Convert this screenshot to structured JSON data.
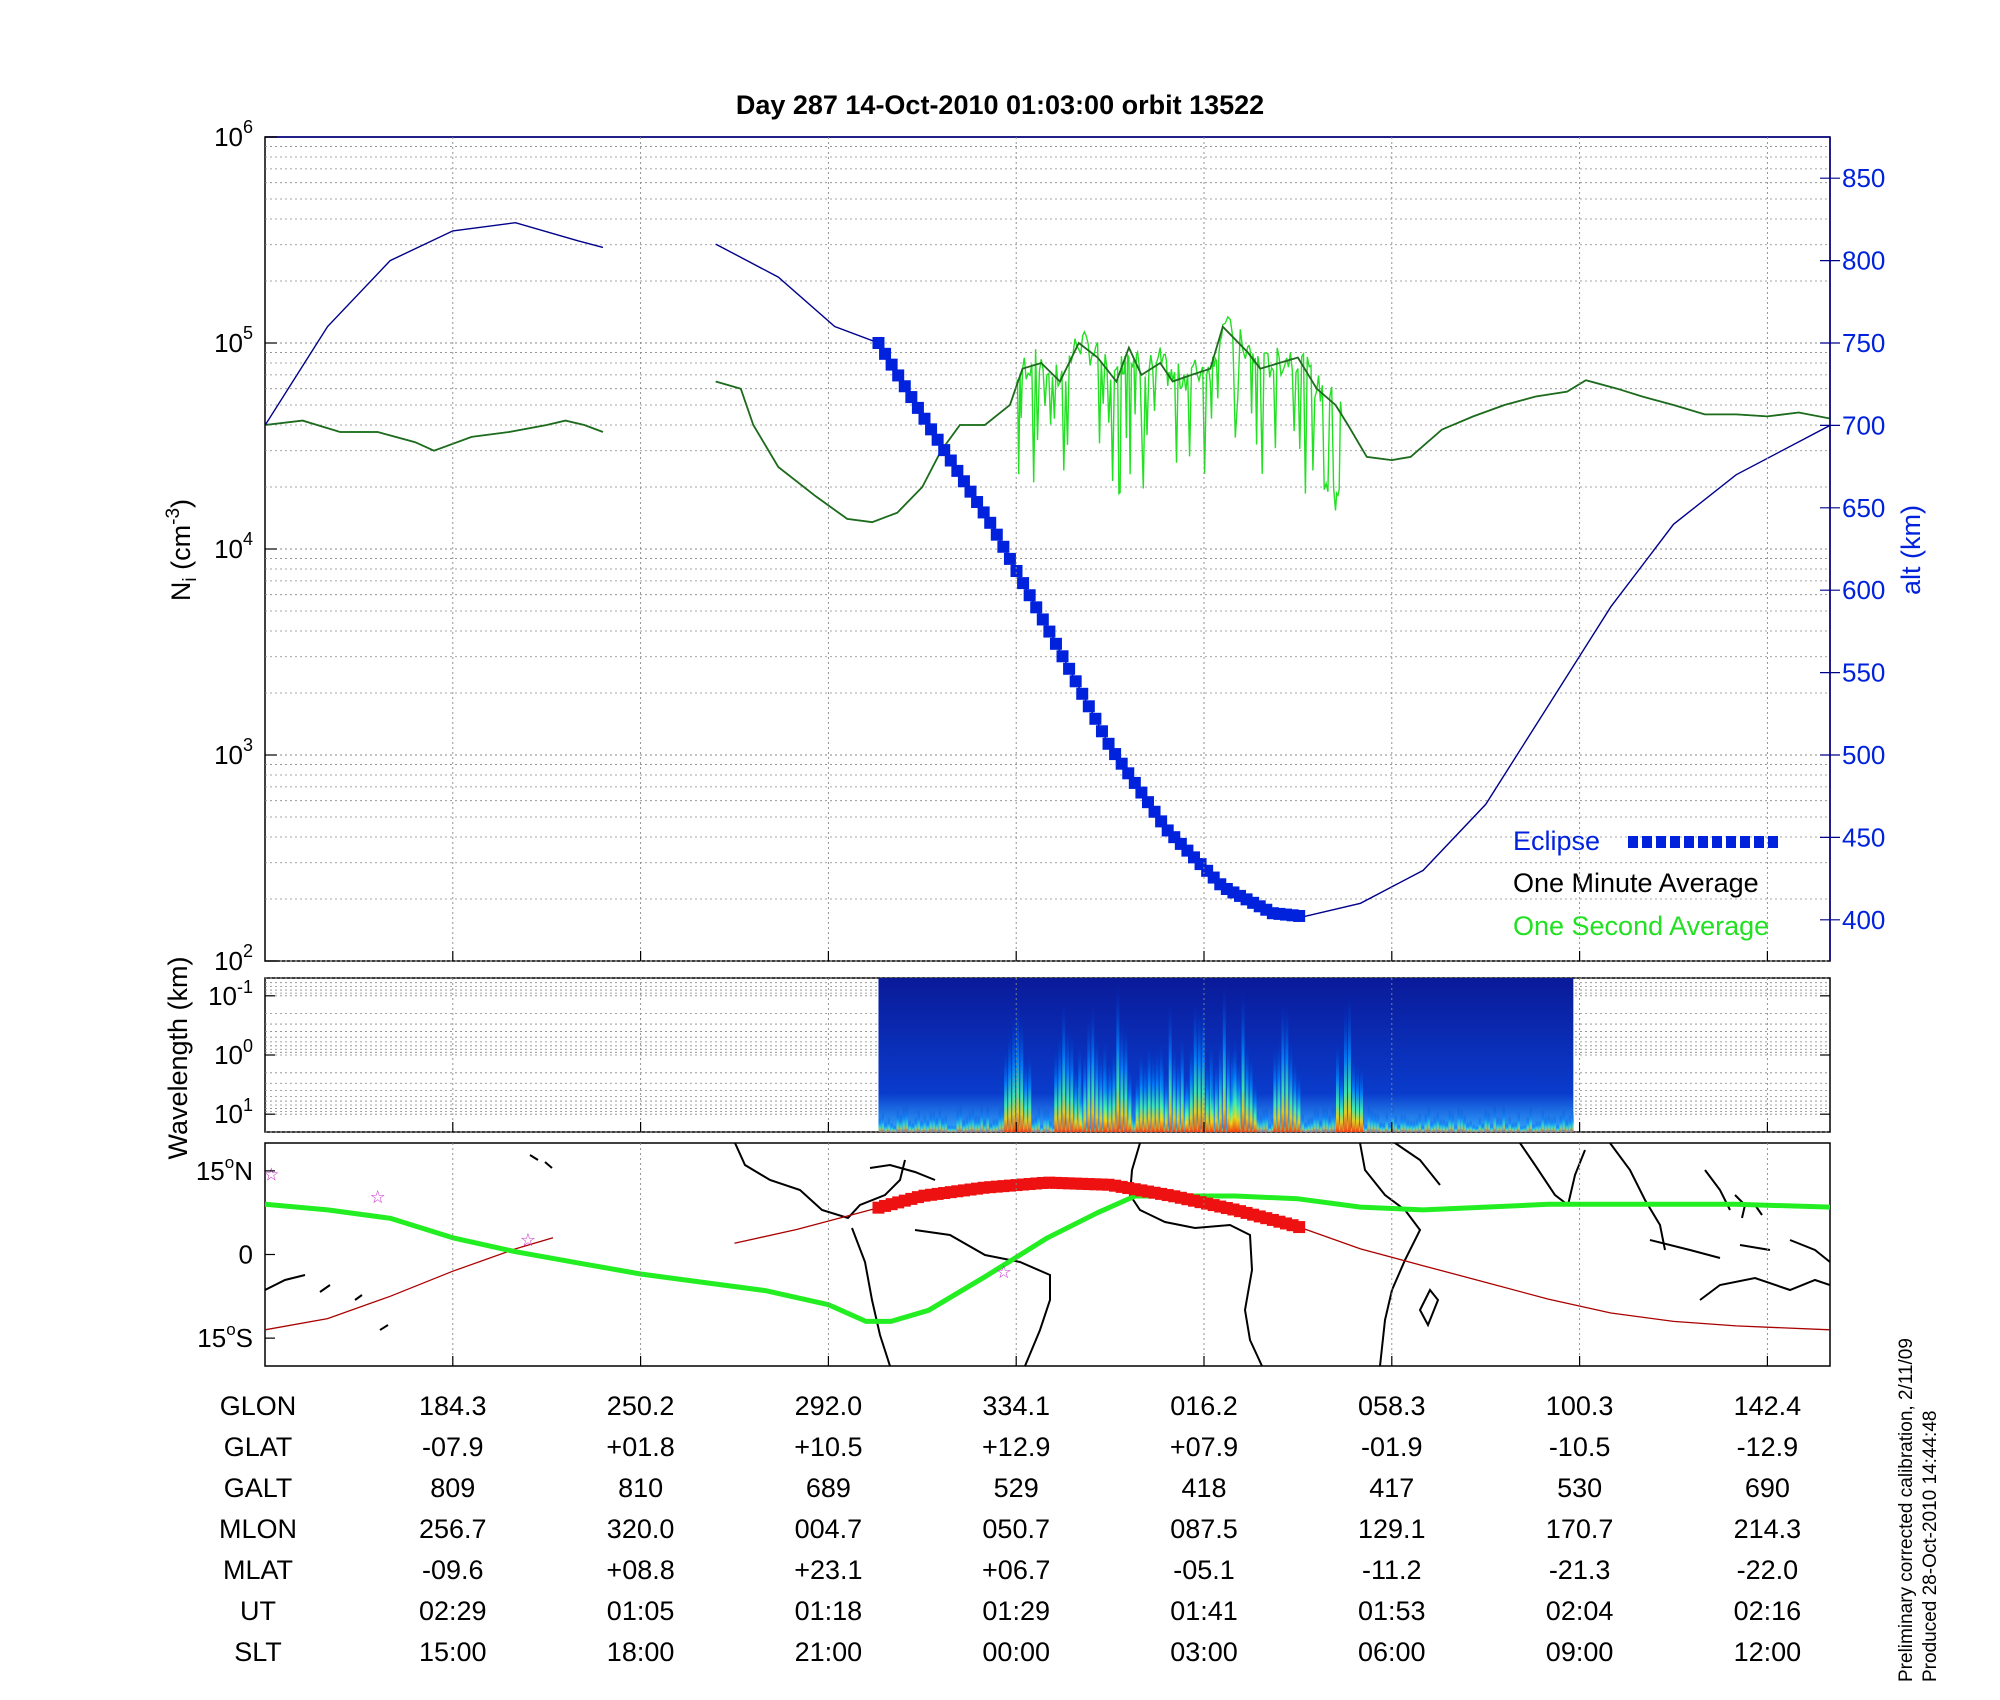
{
  "title": "Day 287  14-Oct-2010 01:03:00   orbit 13522",
  "colors": {
    "altitude": "#00008b",
    "one_minute": "#1e6a1e",
    "one_second": "#22e022",
    "eclipse": "#0022dd",
    "track_eclipse": "#ee1111",
    "track_orbit": "#aa0000",
    "mag_equator": "#22ee22",
    "stars": "#cc33cc"
  },
  "top_panel": {
    "ylabel_base": "N",
    "ylabel_sub": "i",
    "ylabel_unit": " (cm",
    "ylabel_sup": "-3",
    "ylabel_close": ")",
    "y_tick_base": "10",
    "y_tick_exps": [
      "2",
      "3",
      "4",
      "5",
      "6"
    ],
    "right_label": "alt (km)",
    "right_ticks": [
      "400",
      "450",
      "500",
      "550",
      "600",
      "650",
      "700",
      "750",
      "800",
      "850"
    ],
    "legend": {
      "eclipse": "Eclipse",
      "one_minute": "One Minute Average",
      "one_second": "One Second Average"
    }
  },
  "mid_panel": {
    "ylabel": "Wavelength (km)",
    "tick_base": "10",
    "tick_exps": [
      "-1",
      "0",
      "1"
    ],
    "spectrogram_colormap": "jet"
  },
  "map_panel": {
    "lat_ticks": [
      {
        "num": "15",
        "deg": "o",
        "hemi": "N"
      },
      {
        "num": "0",
        "deg": "",
        "hemi": ""
      },
      {
        "num": "15",
        "deg": "o",
        "hemi": "S"
      }
    ]
  },
  "table": {
    "rows": [
      {
        "label": "GLON",
        "values": [
          "184.3",
          "250.2",
          "292.0",
          "334.1",
          "016.2",
          "058.3",
          "100.3",
          "142.4"
        ]
      },
      {
        "label": "GLAT",
        "values": [
          "-07.9",
          "+01.8",
          "+10.5",
          "+12.9",
          "+07.9",
          "-01.9",
          "-10.5",
          "-12.9"
        ]
      },
      {
        "label": "GALT",
        "values": [
          "809",
          "810",
          "689",
          "529",
          "418",
          "417",
          "530",
          "690"
        ]
      },
      {
        "label": "MLON",
        "values": [
          "256.7",
          "320.0",
          "004.7",
          "050.7",
          "087.5",
          "129.1",
          "170.7",
          "214.3"
        ]
      },
      {
        "label": "MLAT",
        "values": [
          "-09.6",
          "+08.8",
          "+23.1",
          "+06.7",
          "-05.1",
          "-11.2",
          "-21.3",
          "-22.0"
        ]
      },
      {
        "label": "UT",
        "values": [
          "02:29",
          "01:05",
          "01:18",
          "01:29",
          "01:41",
          "01:53",
          "02:04",
          "02:16"
        ]
      },
      {
        "label": "SLT",
        "values": [
          "15:00",
          "18:00",
          "21:00",
          "00:00",
          "03:00",
          "06:00",
          "09:00",
          "12:00"
        ]
      }
    ]
  },
  "footer": {
    "line1": "Preliminary corrected calibration, 2/11/09",
    "line2": "Produced 28-Oct-2010 14:44:48"
  },
  "chart_data": [
    {
      "type": "line",
      "y_scale": "log",
      "ylim": [
        100,
        1000000
      ],
      "y2lim": [
        375,
        875
      ],
      "x_range_slt_hours": [
        12,
        37
      ],
      "x_tick_slt": [
        "15:00",
        "18:00",
        "21:00",
        "00:00",
        "03:00",
        "06:00",
        "09:00",
        "12:00"
      ],
      "grid": true,
      "legend_position": "bottom-right",
      "series": [
        {
          "name": "One Minute Average",
          "axis": "left",
          "segments": [
            [
              [
                12.0,
                40000
              ],
              [
                12.6,
                42000
              ],
              [
                13.2,
                37000
              ],
              [
                13.8,
                37000
              ],
              [
                14.4,
                33000
              ],
              [
                14.7,
                30000
              ],
              [
                15.3,
                35000
              ],
              [
                15.9,
                37000
              ],
              [
                16.5,
                40000
              ],
              [
                16.8,
                42000
              ],
              [
                17.1,
                40000
              ],
              [
                17.4,
                37000
              ]
            ],
            [
              [
                19.2,
                65000
              ],
              [
                19.6,
                60000
              ],
              [
                19.8,
                40000
              ],
              [
                20.2,
                25000
              ],
              [
                20.8,
                18000
              ],
              [
                21.3,
                14000
              ],
              [
                21.7,
                13500
              ],
              [
                22.1,
                15000
              ],
              [
                22.5,
                20000
              ],
              [
                22.8,
                30000
              ],
              [
                23.1,
                40000
              ],
              [
                23.5,
                40000
              ],
              [
                23.9,
                50000
              ],
              [
                24.1,
                75000
              ],
              [
                24.4,
                80000
              ],
              [
                24.7,
                65000
              ],
              [
                25.0,
                100000
              ],
              [
                25.3,
                85000
              ],
              [
                25.6,
                65000
              ],
              [
                25.8,
                95000
              ],
              [
                26.0,
                70000
              ],
              [
                26.3,
                80000
              ],
              [
                26.5,
                65000
              ],
              [
                26.8,
                70000
              ],
              [
                27.1,
                75000
              ],
              [
                27.3,
                120000
              ],
              [
                27.7,
                90000
              ],
              [
                27.9,
                75000
              ],
              [
                28.2,
                80000
              ],
              [
                28.5,
                85000
              ],
              [
                28.8,
                60000
              ],
              [
                29.1,
                50000
              ],
              [
                29.3,
                40000
              ],
              [
                29.6,
                28000
              ],
              [
                30.0,
                27000
              ],
              [
                30.3,
                28000
              ],
              [
                30.8,
                38000
              ],
              [
                31.3,
                44000
              ],
              [
                31.8,
                50000
              ],
              [
                32.3,
                55000
              ],
              [
                32.8,
                58000
              ],
              [
                33.1,
                66000
              ],
              [
                33.6,
                60000
              ],
              [
                34.0,
                55000
              ],
              [
                34.5,
                50000
              ],
              [
                35.0,
                45000
              ],
              [
                35.5,
                45000
              ],
              [
                36.0,
                44000
              ],
              [
                36.5,
                46000
              ],
              [
                37.0,
                43000
              ]
            ]
          ]
        },
        {
          "name": "Eclipse",
          "axis": "right",
          "points": [
            [
              21.8,
              750
            ],
            [
              22.6,
              700
            ],
            [
              23.6,
              640
            ],
            [
              24.6,
              570
            ],
            [
              25.5,
              505
            ],
            [
              26.4,
              455
            ],
            [
              27.3,
              420
            ],
            [
              28.1,
              404
            ],
            [
              28.6,
              402
            ]
          ]
        },
        {
          "axis": "right",
          "segments": [
            [
              [
                12.0,
                700
              ],
              [
                13.0,
                760
              ],
              [
                14.0,
                800
              ],
              [
                15.0,
                818
              ],
              [
                16.0,
                823
              ],
              [
                17.0,
                812
              ],
              [
                17.4,
                808
              ]
            ],
            [
              [
                19.2,
                810
              ],
              [
                20.2,
                790
              ],
              [
                21.1,
                760
              ],
              [
                21.8,
                750
              ],
              [
                22.6,
                700
              ],
              [
                23.6,
                640
              ],
              [
                24.6,
                570
              ],
              [
                25.5,
                505
              ],
              [
                26.4,
                455
              ],
              [
                27.3,
                420
              ],
              [
                28.1,
                404
              ],
              [
                28.6,
                402
              ],
              [
                29.5,
                410
              ],
              [
                30.5,
                430
              ],
              [
                31.5,
                470
              ],
              [
                32.5,
                530
              ],
              [
                33.5,
                590
              ],
              [
                34.5,
                640
              ],
              [
                35.5,
                670
              ],
              [
                37.0,
                700
              ]
            ]
          ]
        }
      ]
    },
    {
      "type": "heatmap",
      "y_scale": "log",
      "ylim": [
        20,
        0.05
      ],
      "x_range_slt_hours": [
        12,
        37
      ],
      "data_window_slt": [
        21.8,
        32.9
      ],
      "colormap": "jet",
      "activity_peaks_slt": [
        24.0,
        24.8,
        25.2,
        25.6,
        26.1,
        26.5,
        26.9,
        27.3,
        27.6,
        28.3,
        29.3
      ]
    },
    {
      "type": "line",
      "lon_range_deg": [
        160,
        160
      ],
      "ylim_lat_deg": [
        -20,
        20
      ],
      "series": [
        {
          "name": "satellite track (red)",
          "segments": [
            [
              [
                12.0,
                -13.5
              ],
              [
                13.0,
                -11.5
              ],
              [
                14.0,
                -7.5
              ],
              [
                15.0,
                -3
              ],
              [
                16.0,
                1
              ],
              [
                16.6,
                3
              ]
            ],
            [
              [
                19.5,
                2
              ],
              [
                20.5,
                4.5
              ],
              [
                21.5,
                7.5
              ],
              [
                22.5,
                10.5
              ],
              [
                23.5,
                12
              ],
              [
                24.5,
                12.9
              ],
              [
                25.5,
                12.5
              ],
              [
                26.5,
                10.5
              ],
              [
                27.5,
                8
              ],
              [
                28.5,
                5
              ],
              [
                29.5,
                1
              ],
              [
                30.5,
                -2
              ],
              [
                31.5,
                -5
              ],
              [
                32.5,
                -8
              ],
              [
                33.5,
                -10.5
              ],
              [
                34.5,
                -12
              ],
              [
                35.5,
                -12.8
              ],
              [
                37.0,
                -13.5
              ]
            ]
          ]
        },
        {
          "name": "magnetic equator (green)",
          "points": [
            [
              12.0,
              9
            ],
            [
              13.0,
              8
            ],
            [
              14.0,
              6.5
            ],
            [
              15.0,
              3
            ],
            [
              16.0,
              0.5
            ],
            [
              17.0,
              -1.5
            ],
            [
              18.0,
              -3.5
            ],
            [
              19.0,
              -5
            ],
            [
              20.0,
              -6.5
            ],
            [
              21.0,
              -9
            ],
            [
              21.6,
              -12
            ],
            [
              22.0,
              -12
            ],
            [
              22.6,
              -10
            ],
            [
              23.5,
              -4
            ],
            [
              24.5,
              3
            ],
            [
              25.3,
              7.5
            ],
            [
              25.9,
              10.5
            ],
            [
              26.5,
              10.5
            ],
            [
              27.5,
              10.5
            ],
            [
              28.5,
              10
            ],
            [
              29.5,
              8.5
            ],
            [
              30.5,
              8
            ],
            [
              31.5,
              8.5
            ],
            [
              32.5,
              9
            ],
            [
              33.5,
              9
            ],
            [
              34.5,
              9
            ],
            [
              35.5,
              9
            ],
            [
              37.0,
              8.5
            ]
          ]
        },
        {
          "name": "stars",
          "points": [
            [
              12.1,
              14.5
            ],
            [
              13.8,
              10.5
            ],
            [
              16.2,
              2.8
            ],
            [
              23.8,
              -3
            ]
          ]
        }
      ]
    }
  ]
}
